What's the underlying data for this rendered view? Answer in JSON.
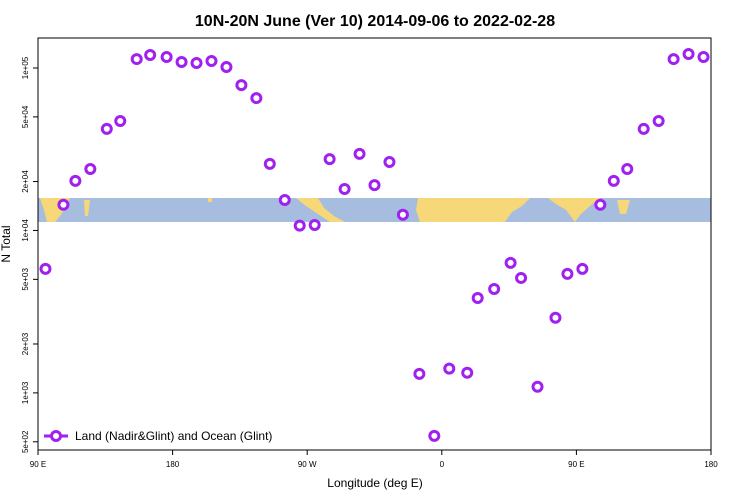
{
  "chart_data": {
    "type": "scatter",
    "title": "10N-20N June (Ver 10)   2014-09-06 to 2022-02-28",
    "xlabel": "Longitude (deg E)",
    "ylabel": "N Total",
    "log_y": true,
    "legend": "lower left",
    "xlim": [
      -270,
      180
    ],
    "xticks": [
      {
        "value": -270,
        "label": "90 E"
      },
      {
        "value": -180,
        "label": "180"
      },
      {
        "value": -90,
        "label": "90 W"
      },
      0,
      {
        "value": 90,
        "label": "90 E"
      },
      180
    ],
    "ylim": [
      445,
      153000
    ],
    "yticks": [
      {
        "value": 500,
        "label": "5e+02"
      },
      {
        "value": 1000,
        "label": "1e+03"
      },
      {
        "value": 2000,
        "label": "2e+03"
      },
      {
        "value": 5000,
        "label": "5e+03"
      },
      {
        "value": 10000,
        "label": "1e+04"
      },
      {
        "value": 20000,
        "label": "2e+04"
      },
      {
        "value": 50000,
        "label": "5e+04"
      },
      {
        "value": 100000,
        "label": "1e+05"
      }
    ],
    "x": [
      -265,
      -253,
      -245,
      -235,
      -224,
      -215,
      -204,
      -195,
      -184,
      -174,
      -164,
      -154,
      -144,
      -134,
      -124,
      -115,
      -105,
      -95,
      -85,
      -75,
      -65,
      -55,
      -45,
      -35,
      -26,
      -15,
      -5,
      5,
      17,
      24,
      35,
      46,
      53,
      64,
      76,
      84,
      94,
      106,
      115,
      124,
      135,
      145,
      155,
      165,
      175
    ],
    "series": [
      {
        "name": "Land (Nadir&Glint) and Ocean (Glint)",
        "color": "#a020f0",
        "values": [
          5800,
          14400,
          20200,
          23900,
          42200,
          47200,
          113500,
          120200,
          116900,
          108900,
          107400,
          110400,
          101400,
          78500,
          65300,
          25700,
          15400,
          10700,
          10800,
          27500,
          18000,
          29600,
          19000,
          26400,
          12500,
          1310,
          544,
          1410,
          1330,
          3840,
          4360,
          6310,
          5100,
          1090,
          2900,
          5400,
          5800,
          14400,
          20200,
          23900,
          42200,
          47200,
          113500,
          122000,
          116900
        ]
      }
    ]
  }
}
